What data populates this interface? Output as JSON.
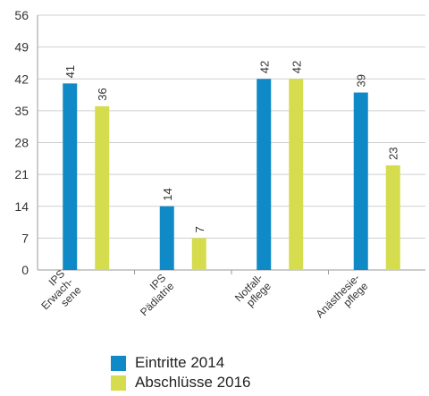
{
  "chart_data": {
    "type": "bar",
    "categories": [
      [
        "IPS",
        "Erwach-",
        "sene"
      ],
      [
        "IPS",
        "Pädiatrie"
      ],
      [
        "Notfall-",
        "pflege"
      ],
      [
        "Anästhesie-",
        "pflege"
      ]
    ],
    "series": [
      {
        "name": "Eintritte 2014",
        "color": "#0f8ac7",
        "values": [
          41,
          14,
          42,
          39
        ]
      },
      {
        "name": "Abschlüsse 2016",
        "color": "#d5dc4e",
        "values": [
          36,
          7,
          42,
          23
        ]
      }
    ],
    "yticks": [
      "0",
      "7",
      "14",
      "21",
      "28",
      "35",
      "42",
      "49",
      "56"
    ],
    "ylim": [
      0,
      56
    ],
    "grid": true,
    "data_labels": true,
    "legend_position": "bottom"
  }
}
